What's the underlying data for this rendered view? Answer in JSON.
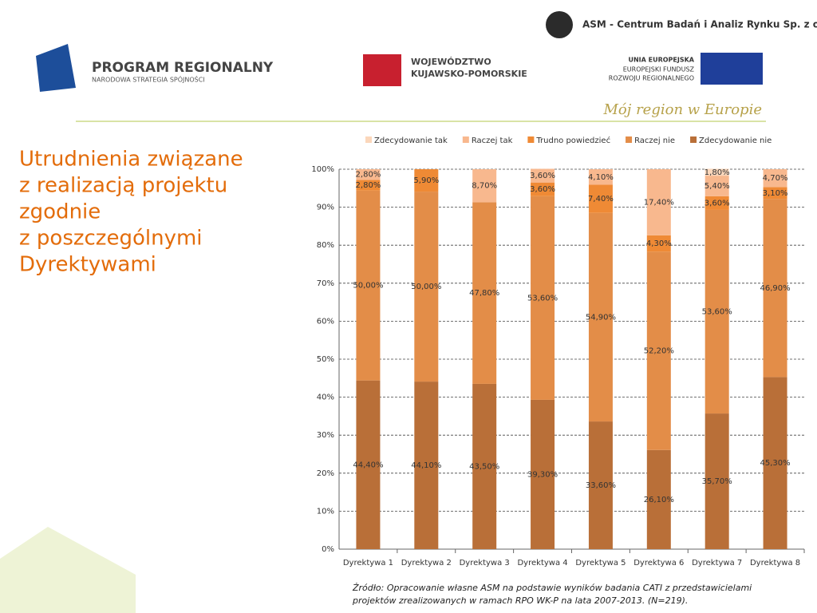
{
  "header": {
    "company": "ASM - Centrum Badań i Analiz Rynku Sp. z o.o.",
    "program": "PROGRAM REGIONALNY",
    "program_sub": "NARODOWA STRATEGIA SPÓJNOŚCI",
    "region": [
      "WOJEWÓDZTWO",
      "KUJAWSKO-POMORSKIE"
    ],
    "eu": [
      "UNIA EUROPEJSKA",
      "EUROPEJSKI FUNDUSZ",
      "ROZWOJU REGIONALNEGO"
    ],
    "motto": "Mój region w Europie"
  },
  "title": [
    "Utrudnienia związane",
    "z realizacją projektu",
    "zgodnie",
    "z poszczególnymi",
    "Dyrektywami"
  ],
  "source": [
    "Źródło: Opracowanie własne ASM na podstawie wyników badania CATI z przedstawicielami",
    "projektów  zrealizowanych w ramach RPO WK-P na lata 2007-2013. (N=219)."
  ],
  "chart_data": {
    "type": "stacked_bar",
    "categories": [
      "Dyrektywa 1",
      "Dyrektywa 2",
      "Dyrektywa 3",
      "Dyrektywa 4",
      "Dyrektywa 5",
      "Dyrektywa 6",
      "Dyrektywa 7",
      "Dyrektywa 8"
    ],
    "series": [
      {
        "name": "Zdecydowanie tak",
        "color": "#fbd7bb",
        "values": [
          null,
          null,
          null,
          null,
          null,
          null,
          1.8,
          null
        ],
        "value_labels": [
          null,
          null,
          null,
          null,
          null,
          null,
          "1,80%",
          null
        ]
      },
      {
        "name": "Raczej tak",
        "color": "#f8b88e",
        "values": [
          2.8,
          null,
          8.7,
          3.6,
          4.1,
          17.4,
          5.4,
          4.7
        ],
        "value_labels": [
          "2,80%",
          null,
          "8,70%",
          "3,60%",
          "4,10%",
          "17,40%",
          "5,40%",
          "4,70%"
        ]
      },
      {
        "name": "Trudno powiedzieć",
        "color": "#ef8a35",
        "values": [
          2.8,
          5.9,
          null,
          3.6,
          7.4,
          4.3,
          3.6,
          3.1
        ],
        "value_labels": [
          "2,80%",
          "5,90%",
          null,
          "3,60%",
          "7,40%",
          "4,30%",
          "3,60%",
          "3,10%"
        ]
      },
      {
        "name": "Raczej nie",
        "color": "#e38d48",
        "values": [
          50.0,
          50.0,
          47.8,
          53.6,
          54.9,
          52.2,
          53.6,
          46.9
        ],
        "value_labels": [
          "50,00%",
          "50,00%",
          "47,80%",
          "53,60%",
          "54,90%",
          "52,20%",
          "53,60%",
          "46,90%"
        ]
      },
      {
        "name": "Zdecydowanie nie",
        "color": "#b96f38",
        "values": [
          44.4,
          44.1,
          43.5,
          39.3,
          33.6,
          26.1,
          35.7,
          45.3
        ],
        "value_labels": [
          "44,40%",
          "44,10%",
          "43,50%",
          "39,30%",
          "33,60%",
          "26,10%",
          "35,70%",
          "45,30%"
        ]
      }
    ],
    "ylim": [
      0,
      100
    ],
    "yticks": [
      {
        "value": 0,
        "label": "0%"
      },
      {
        "value": 10,
        "label": "10%"
      },
      {
        "value": 20,
        "label": "20%"
      },
      {
        "value": 30,
        "label": "30%"
      },
      {
        "value": 40,
        "label": "40%"
      },
      {
        "value": 50,
        "label": "50%"
      },
      {
        "value": 60,
        "label": "60%"
      },
      {
        "value": 70,
        "label": "70%"
      },
      {
        "value": 80,
        "label": "80%"
      },
      {
        "value": 90,
        "label": "90%"
      },
      {
        "value": 100,
        "label": "100%"
      }
    ],
    "grid": true,
    "legend": "top"
  }
}
